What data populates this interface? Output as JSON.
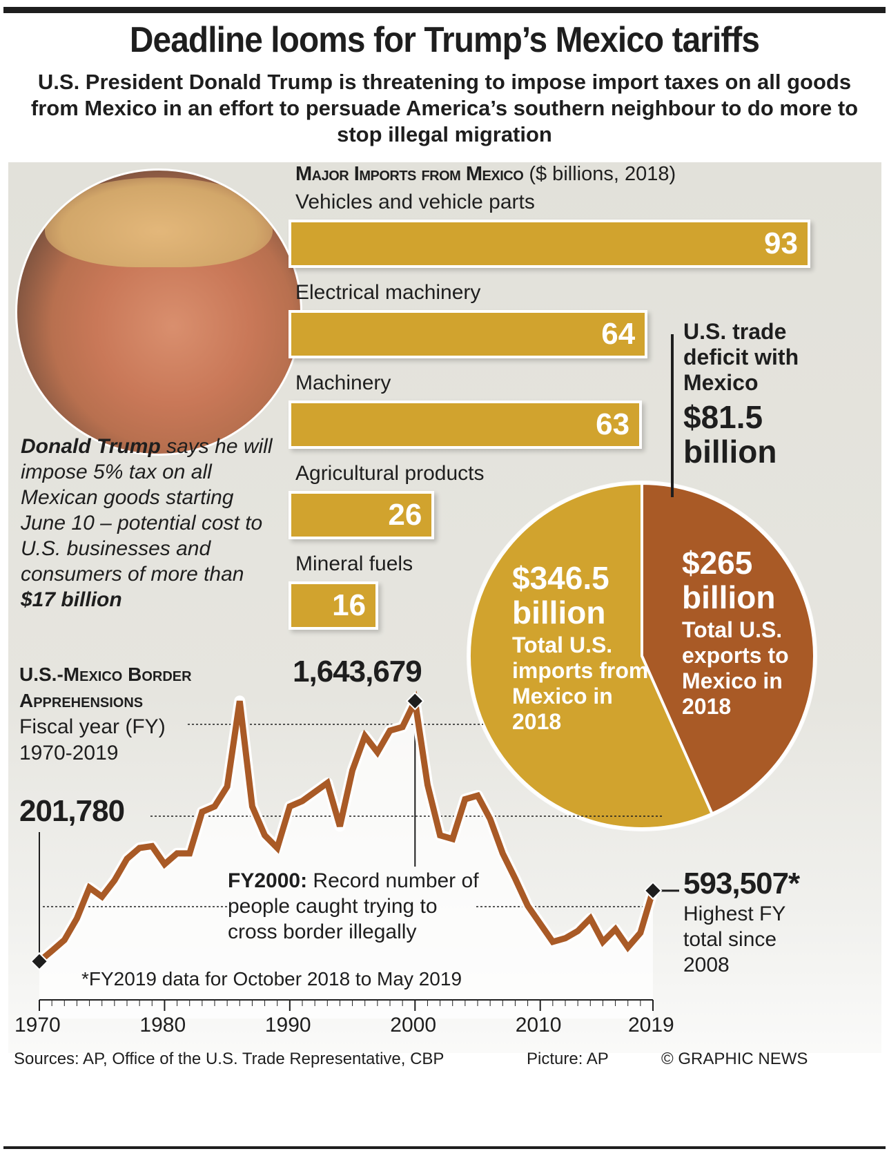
{
  "header": {
    "title": "Deadline looms for Trump’s Mexico tariffs",
    "subtitle": "U.S. President Donald Trump is threatening to impose import taxes on all goods from Mexico in an effort to persuade America’s southern neighbour to do more to stop illegal migration"
  },
  "photo": {
    "subject": "Donald Trump portrait",
    "credit": "Picture: AP"
  },
  "caption": {
    "bold_lead": "Donald Trump",
    "text": " says he will impose 5% tax on all Mexican goods starting June 10 – potential cost to U.S. businesses and consumers of more than ",
    "bold_tail": "$17 billion"
  },
  "colors": {
    "gold": "#d1a32e",
    "rust": "#a95a26",
    "ink": "#1e1e1e",
    "panel": "#e3e2db"
  },
  "chart_data": [
    {
      "type": "bar",
      "title": "Major Imports from Mexico",
      "title_suffix": "($ billions, 2018)",
      "categories": [
        "Vehicles and vehicle parts",
        "Electrical machinery",
        "Machinery",
        "Agricultural products",
        "Mineral fuels"
      ],
      "values": [
        93,
        64,
        63,
        26,
        16
      ],
      "value_labels": [
        "93",
        "64",
        "63",
        "26",
        "16"
      ],
      "unit": "$ billions",
      "orientation": "horizontal"
    },
    {
      "type": "pie",
      "title": "U.S.-Mexico trade 2018",
      "slices": [
        {
          "name": "Total U.S. imports from Mexico in 2018",
          "value": 346.5,
          "label": "$346.5 billion",
          "desc": "Total U.S. imports from Mexico in 2018",
          "color": "#d1a32e"
        },
        {
          "name": "Total U.S. exports to Mexico in 2018",
          "value": 265,
          "label": "$265 billion",
          "desc": "Total U.S. exports to Mexico in 2018",
          "color": "#a95a26"
        }
      ],
      "annotation": {
        "title": "U.S. trade deficit with Mexico",
        "value": "$81.5 billion"
      }
    },
    {
      "type": "line",
      "title": "U.S.-Mexico Border Apprehensions",
      "subtitle": "Fiscal year (FY) 1970-2019",
      "x": [
        1970,
        1971,
        1972,
        1973,
        1974,
        1975,
        1976,
        1977,
        1978,
        1979,
        1980,
        1981,
        1982,
        1983,
        1984,
        1985,
        1986,
        1987,
        1988,
        1989,
        1990,
        1991,
        1992,
        1993,
        1994,
        1995,
        1996,
        1997,
        1998,
        1999,
        2000,
        2001,
        2002,
        2003,
        2004,
        2005,
        2006,
        2007,
        2008,
        2009,
        2010,
        2011,
        2012,
        2013,
        2014,
        2015,
        2016,
        2017,
        2018,
        2019
      ],
      "series": [
        {
          "name": "Apprehensions",
          "values": [
            201780,
            260000,
            320000,
            440000,
            610000,
            560000,
            650000,
            770000,
            830000,
            840000,
            740000,
            800000,
            800000,
            1030000,
            1060000,
            1170000,
            1643679,
            1060000,
            900000,
            830000,
            1060000,
            1090000,
            1140000,
            1190000,
            950000,
            1260000,
            1450000,
            1360000,
            1480000,
            1500000,
            1643679,
            1180000,
            900000,
            880000,
            1100000,
            1120000,
            990000,
            800000,
            660000,
            510000,
            410000,
            310000,
            330000,
            370000,
            440000,
            310000,
            380000,
            280000,
            360000,
            593507
          ]
        }
      ],
      "xlim": [
        1970,
        2019
      ],
      "ylim": [
        0,
        1700000
      ],
      "x_tick_labels": [
        "1970",
        "1980",
        "1990",
        "2000",
        "2010",
        "2019"
      ],
      "annotations": [
        {
          "x": 1970,
          "label": "201,780"
        },
        {
          "x": 2000,
          "label": "1,643,679",
          "note_bold": "FY2000:",
          "note": " Record number of people caught trying to cross border illegally"
        },
        {
          "x": 2019,
          "label": "593,507*",
          "note": "Highest FY total since 2008"
        }
      ],
      "footnote": "*FY2019 data for October 2018 to May 2019",
      "grid": false
    }
  ],
  "footer": {
    "sources": "Sources: AP, Office of the U.S. Trade Representative, CBP",
    "picture": "Picture: AP",
    "copyright": "© GRAPHIC NEWS"
  }
}
